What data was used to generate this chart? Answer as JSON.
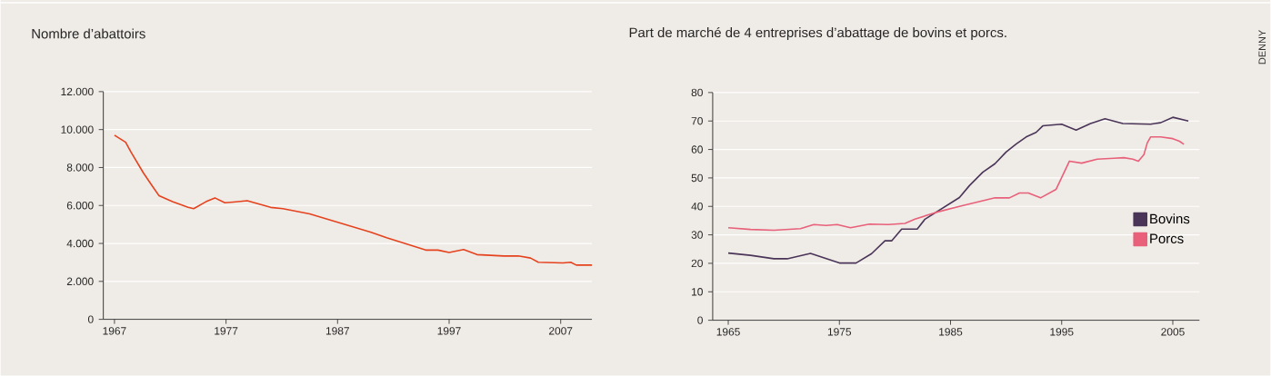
{
  "chart_data": [
    {
      "type": "line",
      "title": "Nombre d’abattoirs",
      "color": "#e5421e",
      "grid": "y",
      "xlim": [
        1966,
        2009.8
      ],
      "ylim": [
        0,
        12000
      ],
      "xticks": [
        1967,
        1977,
        1987,
        1997,
        2007
      ],
      "yticks": [
        0,
        {
          "value": 2000,
          "label": "2.000"
        },
        {
          "value": 4000,
          "label": "4.000"
        },
        {
          "value": 6000,
          "label": "6.000"
        },
        {
          "value": 8000,
          "label": "8.000"
        },
        {
          "value": 10000,
          "label": "10.000"
        },
        {
          "value": 12000,
          "label": "12.000"
        }
      ],
      "x": [
        1967,
        1968,
        1968.5,
        1969.6,
        1970.4,
        1971,
        1972.2,
        1973.6,
        1974.1,
        1975.2,
        1976,
        1976.9,
        1978.9,
        1981,
        1982.1,
        1984.5,
        1990,
        1991.4,
        1994.9,
        1996,
        1997,
        1998.3,
        1999.5,
        2001.9,
        2003.2,
        2004.3,
        2005,
        2007.2,
        2007.9,
        2008.4,
        2009.8
      ],
      "values": [
        9700,
        9330,
        8790,
        7710,
        7020,
        6510,
        6200,
        5900,
        5830,
        6200,
        6400,
        6140,
        6250,
        5900,
        5830,
        5560,
        4590,
        4300,
        3650,
        3650,
        3520,
        3680,
        3410,
        3340,
        3340,
        3230,
        3010,
        2970,
        3010,
        2860,
        2860
      ]
    },
    {
      "type": "line",
      "title": "Part de marché de 4 entreprises d’abattage de bovins et porcs.",
      "grid": "y",
      "legend": "right",
      "xlim": [
        1963.6,
        2007.4
      ],
      "ylim": [
        0,
        80
      ],
      "xticks": [
        1965,
        1975,
        1985,
        1995,
        2005
      ],
      "yticks": [
        0,
        10,
        20,
        30,
        40,
        50,
        60,
        70,
        80
      ],
      "annotations": [
        "DENNY"
      ],
      "series": [
        {
          "name": "Bovins",
          "color": "#4a3558",
          "x": [
            1965,
            1967,
            1969.1,
            1970.3,
            1972.4,
            1975,
            1976.5,
            1977.9,
            1979.1,
            1979.7,
            1980.6,
            1982,
            1982.7,
            1985.8,
            1986.7,
            1987.9,
            1989,
            1990,
            1990.9,
            1991.8,
            1992.7,
            1993.3,
            1995,
            1996.3,
            1997.6,
            1998.9,
            2000.5,
            2003,
            2003.9,
            2005,
            2006.4
          ],
          "values": [
            23.6,
            22.8,
            21.6,
            21.6,
            23.5,
            20.1,
            20.1,
            23.4,
            27.9,
            27.9,
            32,
            32,
            35.5,
            43.1,
            47.3,
            52,
            55,
            59.1,
            61.9,
            64.4,
            66,
            68.3,
            68.9,
            66.8,
            69.1,
            70.8,
            69.1,
            68.9,
            69.4,
            71.3,
            70
          ]
        },
        {
          "name": "Porcs",
          "color": "#e8607a",
          "x": [
            1965,
            1967,
            1969.1,
            1971.5,
            1972.7,
            1973.8,
            1974.8,
            1976,
            1977.7,
            1979.4,
            1980.9,
            1981.8,
            1983.6,
            1985.8,
            1989,
            1990.3,
            1991.2,
            1992,
            1993.1,
            1994.5,
            1995.7,
            1996.8,
            1998.2,
            1999.7,
            2000.6,
            2001.4,
            2001.9,
            2002.4,
            2002.7,
            2003,
            2003.9,
            2005,
            2005.6,
            2006
          ],
          "values": [
            32.5,
            31.9,
            31.6,
            32.2,
            33.6,
            33.3,
            33.6,
            32.5,
            33.8,
            33.6,
            34,
            35.5,
            37.8,
            40,
            43,
            43,
            44.7,
            44.7,
            43,
            46,
            55.9,
            55.2,
            56.6,
            56.9,
            57.1,
            56.6,
            55.9,
            58.2,
            62.3,
            64.4,
            64.4,
            63.8,
            62.9,
            61.8
          ]
        }
      ]
    }
  ]
}
